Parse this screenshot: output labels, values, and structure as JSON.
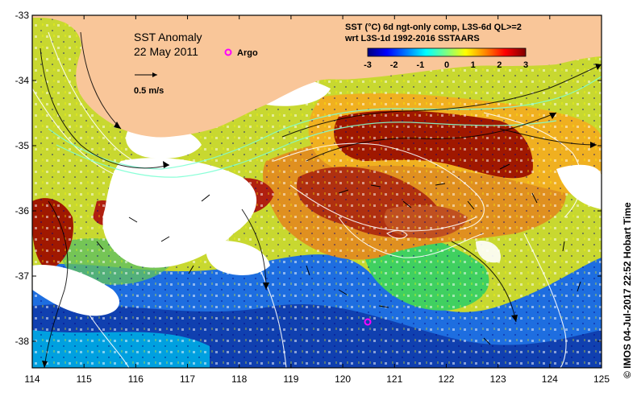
{
  "map": {
    "title": "SST Anomaly",
    "date": "22 May 2011",
    "argo_label": "Argo",
    "scale_label": "0.5 m/s",
    "legend_line1": "SST (°C) 6d ngt-only comp, L3S-6d QL>=2",
    "legend_line2": "wrt L3S-1d 1992-2016 SSTAARS",
    "credit": "© IMOS 04-Jul-2017 22:52 Hobart Time",
    "colors": {
      "land": "#f9c699",
      "argo": "#ff00ff",
      "contour": "#ffffff",
      "current": "#000000",
      "stream_cyan": "#7fffd4"
    }
  },
  "colorbar": {
    "ticks": [
      "-3",
      "-2",
      "-1",
      "0",
      "1",
      "2",
      "3"
    ],
    "min": -3,
    "max": 3,
    "colors": [
      "#00007f",
      "#0000ff",
      "#0080ff",
      "#00ffff",
      "#80ff80",
      "#ffff00",
      "#ff8000",
      "#ff0000",
      "#7f0000"
    ]
  },
  "axes": {
    "x_ticks": [
      "114",
      "115",
      "116",
      "117",
      "118",
      "119",
      "120",
      "121",
      "122",
      "123",
      "124",
      "125"
    ],
    "y_ticks": [
      "-33",
      "-34",
      "-35",
      "-36",
      "-37",
      "-38"
    ]
  }
}
